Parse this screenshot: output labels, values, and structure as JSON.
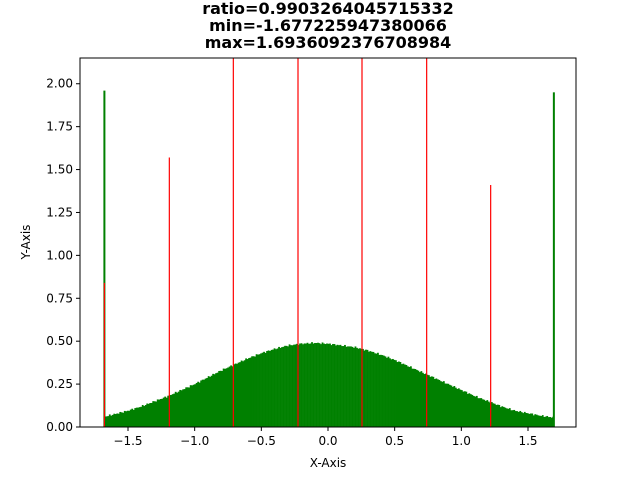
{
  "chart_data": {
    "type": "bar",
    "title_lines": [
      "ratio=0.9903264045715332",
      "min=-1.677225947380066",
      "max=1.6936092376708984"
    ],
    "xlabel": "X-Axis",
    "ylabel": "Y-Axis",
    "xlim": [
      -1.86,
      1.86
    ],
    "ylim": [
      0.0,
      2.15
    ],
    "x_ticks": [
      -1.5,
      -1.0,
      -0.5,
      0.0,
      0.5,
      1.0,
      1.5
    ],
    "x_tick_labels": [
      "−1.5",
      "−1.0",
      "−0.5",
      "0.0",
      "0.5",
      "1.0",
      "1.5"
    ],
    "y_ticks": [
      0.0,
      0.25,
      0.5,
      0.75,
      1.0,
      1.25,
      1.5,
      1.75,
      2.0
    ],
    "y_tick_labels": [
      "0.00",
      "0.25",
      "0.50",
      "0.75",
      "1.00",
      "1.25",
      "1.50",
      "1.75",
      "2.00"
    ],
    "grid": false,
    "histogram": {
      "color": "#008000",
      "range": [
        -1.677225947380066,
        1.6936092376708984
      ],
      "profile": [
        [
          -1.677,
          0.06
        ],
        [
          -1.6,
          0.075
        ],
        [
          -1.5,
          0.095
        ],
        [
          -1.4,
          0.12
        ],
        [
          -1.3,
          0.15
        ],
        [
          -1.2,
          0.18
        ],
        [
          -1.1,
          0.215
        ],
        [
          -1.0,
          0.25
        ],
        [
          -0.9,
          0.29
        ],
        [
          -0.8,
          0.33
        ],
        [
          -0.7,
          0.365
        ],
        [
          -0.6,
          0.4
        ],
        [
          -0.5,
          0.43
        ],
        [
          -0.4,
          0.455
        ],
        [
          -0.3,
          0.475
        ],
        [
          -0.2,
          0.485
        ],
        [
          -0.1,
          0.49
        ],
        [
          0.0,
          0.485
        ],
        [
          0.1,
          0.475
        ],
        [
          0.2,
          0.465
        ],
        [
          0.3,
          0.445
        ],
        [
          0.4,
          0.42
        ],
        [
          0.5,
          0.39
        ],
        [
          0.6,
          0.355
        ],
        [
          0.7,
          0.32
        ],
        [
          0.8,
          0.285
        ],
        [
          0.9,
          0.25
        ],
        [
          1.0,
          0.215
        ],
        [
          1.1,
          0.18
        ],
        [
          1.2,
          0.15
        ],
        [
          1.3,
          0.12
        ],
        [
          1.4,
          0.095
        ],
        [
          1.5,
          0.08
        ],
        [
          1.6,
          0.065
        ],
        [
          1.694,
          0.055
        ]
      ],
      "edge_spikes": [
        {
          "x": -1.677,
          "value": 1.96
        },
        {
          "x": 1.694,
          "value": 1.95
        }
      ]
    },
    "red_lines": {
      "color": "#ff0000",
      "lines": [
        {
          "x": -1.677,
          "value": 0.84
        },
        {
          "x": -1.19,
          "value": 1.57
        },
        {
          "x": -0.71,
          "value": 2.15
        },
        {
          "x": -0.225,
          "value": 2.15
        },
        {
          "x": 0.255,
          "value": 2.15
        },
        {
          "x": 0.74,
          "value": 2.15
        },
        {
          "x": 1.22,
          "value": 1.41
        }
      ]
    }
  }
}
